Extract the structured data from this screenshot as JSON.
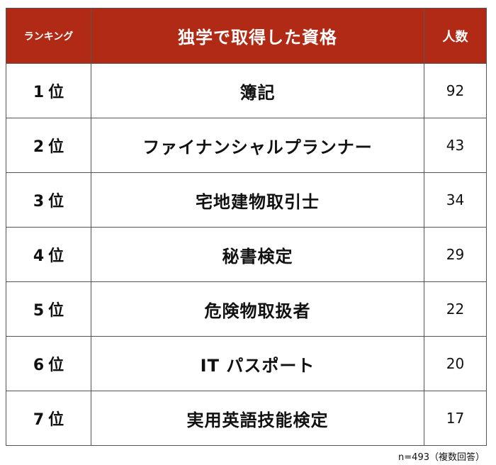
{
  "header": {
    "rank_label": "ランキング",
    "title": "独学で取得した資格",
    "count_label": "人数"
  },
  "rows": [
    {
      "rank_num": "1",
      "rank_suffix": "位",
      "name": "簿記",
      "count": "92"
    },
    {
      "rank_num": "2",
      "rank_suffix": "位",
      "name": "ファイナンシャルプランナー",
      "count": "43"
    },
    {
      "rank_num": "3",
      "rank_suffix": "位",
      "name": "宅地建物取引士",
      "count": "34"
    },
    {
      "rank_num": "4",
      "rank_suffix": "位",
      "name": "秘書検定",
      "count": "29"
    },
    {
      "rank_num": "5",
      "rank_suffix": "位",
      "name": "危険物取扱者",
      "count": "22"
    },
    {
      "rank_num": "6",
      "rank_suffix": "位",
      "name": "IT パスポート",
      "count": "20"
    },
    {
      "rank_num": "7",
      "rank_suffix": "位",
      "name": "実用英語技能検定",
      "count": "17"
    }
  ],
  "footnote": "n=493（複数回答）",
  "colors": {
    "header_bg": "#b02a16",
    "header_text": "#ffffff",
    "border": "#555555"
  },
  "chart_data": {
    "type": "table",
    "title": "独学で取得した資格",
    "columns": [
      "ランキング",
      "独学で取得した資格",
      "人数"
    ],
    "categories": [
      "簿記",
      "ファイナンシャルプランナー",
      "宅地建物取引士",
      "秘書検定",
      "危険物取扱者",
      "IT パスポート",
      "実用英語技能検定"
    ],
    "ranks": [
      "1位",
      "2位",
      "3位",
      "4位",
      "5位",
      "6位",
      "7位"
    ],
    "values": [
      92,
      43,
      34,
      29,
      22,
      20,
      17
    ],
    "note": "n=493（複数回答）"
  }
}
